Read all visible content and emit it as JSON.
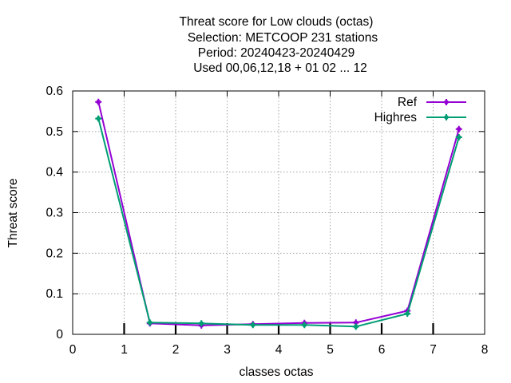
{
  "chart_data": {
    "type": "line",
    "title_lines": [
      "Threat score  for Low clouds (octas)",
      "Selection: METCOOP    231 stations",
      "Period: 20240423-20240429",
      "Used  00,06,12,18 + 01 02 ... 12"
    ],
    "xlabel": "classes octas",
    "ylabel": "Threat score",
    "xlim": [
      0,
      8
    ],
    "ylim": [
      0,
      0.6
    ],
    "xticks": [
      "0",
      "1",
      "2",
      "3",
      "4",
      "5",
      "6",
      "7",
      "8"
    ],
    "yticks": [
      "0",
      "0.1",
      "0.2",
      "0.3",
      "0.4",
      "0.5",
      "0.6"
    ],
    "grid": true,
    "legend_position": "top-right",
    "x": [
      0.5,
      1.5,
      2.5,
      3.5,
      4.5,
      5.5,
      6.5,
      7.5
    ],
    "series": [
      {
        "name": "Ref",
        "color": "#9400d3",
        "values": [
          0.573,
          0.027,
          0.022,
          0.025,
          0.028,
          0.029,
          0.058,
          0.506
        ]
      },
      {
        "name": "Highres",
        "color": "#009e73",
        "values": [
          0.532,
          0.029,
          0.027,
          0.023,
          0.023,
          0.019,
          0.051,
          0.486
        ]
      }
    ]
  }
}
